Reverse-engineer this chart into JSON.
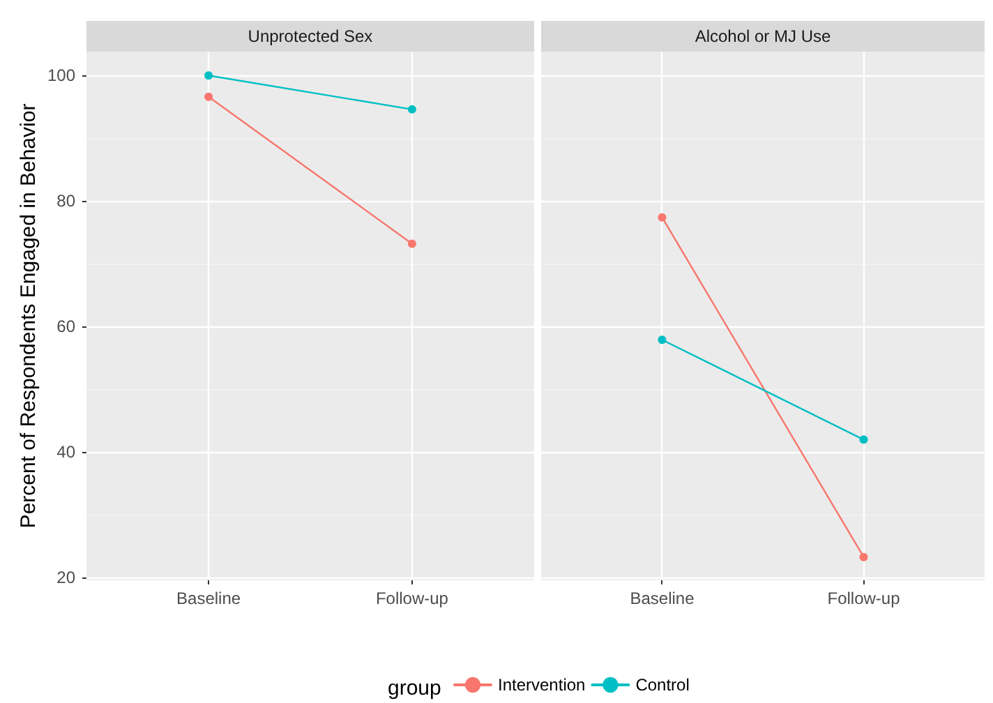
{
  "chart_data": [
    {
      "type": "line",
      "title": "Unprotected Sex",
      "ylabel": "Percent of Respondents Engaged in Behavior",
      "legend_title": "group",
      "legend": "bottom",
      "categories": [
        "Baseline",
        "Follow-up"
      ],
      "ylim": [
        19.6,
        103.8
      ],
      "yticks": [
        20,
        40,
        60,
        80,
        100
      ],
      "grid": true,
      "marker": "circle",
      "line_style": "solid",
      "series": [
        {
          "name": "Intervention",
          "color": "#f8766d",
          "values": [
            96.6,
            73.2
          ]
        },
        {
          "name": "Control",
          "color": "#00bfc4",
          "values": [
            100,
            94.6
          ]
        }
      ]
    },
    {
      "type": "line",
      "title": "Alcohol or MJ Use",
      "categories": [
        "Baseline",
        "Follow-up"
      ],
      "ylim": [
        19.6,
        103.8
      ],
      "yticks": [
        20,
        40,
        60,
        80,
        100
      ],
      "tick_labels": "x",
      "grid": true,
      "marker": "circle",
      "line_style": "solid",
      "series": [
        {
          "color": "#f8766d",
          "values": [
            77.4,
            23.3
          ]
        },
        {
          "color": "#00bfc4",
          "values": [
            57.9,
            42.0
          ]
        }
      ]
    }
  ]
}
